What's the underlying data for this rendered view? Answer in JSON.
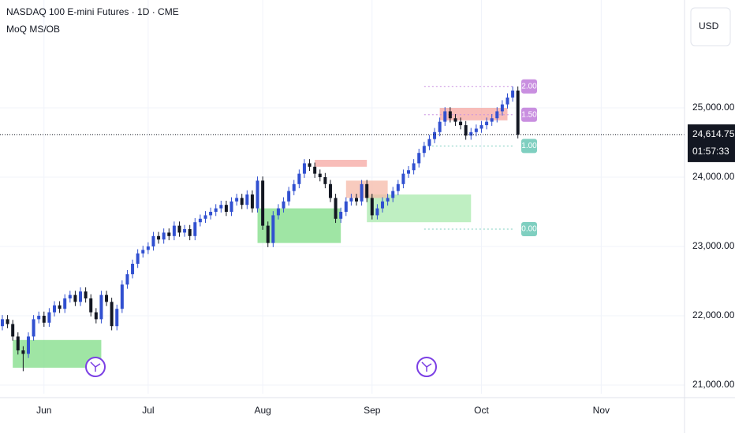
{
  "chart_data": {
    "type": "candlestick",
    "title": "NASDAQ 100 E-mini Futures · 1D · CME",
    "indicator": "MoQ MS/OB",
    "currency": "USD",
    "up_color": "#3150d0",
    "down_color": "#131722",
    "grid": true,
    "open": [
      21850,
      21950,
      21880,
      21700,
      21500,
      21450,
      21700,
      21950,
      22000,
      21900,
      22050,
      22150,
      22100,
      22250,
      22300,
      22200,
      22350,
      22250,
      22050,
      21950,
      22300,
      22200,
      21850,
      22100,
      22450,
      22600,
      22750,
      22900,
      22950,
      23000,
      23150,
      23100,
      23200,
      23150,
      23300,
      23200,
      23250,
      23150,
      23350,
      23400,
      23450,
      23500,
      23550,
      23600,
      23500,
      23650,
      23700,
      23600,
      23750,
      23550,
      23950,
      23300,
      23050,
      23450,
      23550,
      23650,
      23800,
      23900,
      24050,
      24200,
      24150,
      24050,
      24000,
      23900,
      23700,
      23400,
      23500,
      23650,
      23700,
      23650,
      23900,
      23700,
      23450,
      23550,
      23650,
      23700,
      23800,
      23900,
      24050,
      24100,
      24200,
      24350,
      24450,
      24550,
      24650,
      24800,
      24950,
      24850,
      24800,
      24750,
      24600,
      24650,
      24700,
      24750,
      24800,
      24850,
      24950,
      25050,
      25150,
      25250
    ],
    "high": [
      22010,
      22010,
      21940,
      21760,
      21560,
      21760,
      22010,
      22060,
      22060,
      22110,
      22210,
      22210,
      22310,
      22360,
      22360,
      22410,
      22410,
      22310,
      22110,
      22360,
      22360,
      22260,
      22160,
      22510,
      22660,
      22810,
      22960,
      23010,
      23060,
      23210,
      23210,
      23260,
      23260,
      23360,
      23360,
      23310,
      23310,
      23410,
      23460,
      23510,
      23560,
      23610,
      23660,
      23660,
      23710,
      23760,
      23760,
      23810,
      23810,
      24010,
      24010,
      23360,
      23510,
      23610,
      23710,
      23860,
      23960,
      24110,
      24260,
      24260,
      24210,
      24110,
      24060,
      23960,
      23760,
      23560,
      23710,
      23760,
      23760,
      23960,
      23960,
      23760,
      23610,
      23710,
      23760,
      23860,
      23960,
      24110,
      24160,
      24260,
      24410,
      24510,
      24610,
      24710,
      24860,
      25010,
      25010,
      24910,
      24860,
      24810,
      24710,
      24760,
      24810,
      24860,
      24910,
      25010,
      25110,
      25210,
      25310,
      25310
    ],
    "low": [
      21790,
      21820,
      21640,
      21440,
      21200,
      21390,
      21640,
      21890,
      21840,
      21840,
      21990,
      22040,
      22040,
      22190,
      22140,
      22140,
      22190,
      21990,
      21890,
      21890,
      22140,
      21790,
      21790,
      22040,
      22390,
      22540,
      22690,
      22840,
      22890,
      22940,
      23040,
      23040,
      23090,
      23090,
      23140,
      23140,
      23090,
      23090,
      23290,
      23340,
      23390,
      23440,
      23490,
      23440,
      23440,
      23590,
      23540,
      23540,
      23490,
      23490,
      23240,
      22990,
      22990,
      23390,
      23490,
      23590,
      23740,
      23840,
      23990,
      24090,
      23990,
      23940,
      23840,
      23640,
      23340,
      23340,
      23440,
      23590,
      23590,
      23590,
      23640,
      23390,
      23390,
      23490,
      23590,
      23640,
      23740,
      23840,
      23990,
      24040,
      24140,
      24290,
      24390,
      24490,
      24590,
      24740,
      24790,
      24740,
      24690,
      24540,
      24540,
      24590,
      24640,
      24690,
      24740,
      24790,
      24890,
      24990,
      25090,
      24560
    ],
    "close": [
      21950,
      21880,
      21700,
      21500,
      21450,
      21700,
      21950,
      22000,
      21900,
      22050,
      22150,
      22100,
      22250,
      22300,
      22200,
      22350,
      22250,
      22050,
      21950,
      22300,
      22200,
      21850,
      22100,
      22450,
      22600,
      22750,
      22900,
      22950,
      23000,
      23150,
      23100,
      23200,
      23150,
      23300,
      23200,
      23250,
      23150,
      23350,
      23400,
      23450,
      23500,
      23550,
      23600,
      23500,
      23650,
      23700,
      23600,
      23750,
      23550,
      23950,
      23300,
      23050,
      23450,
      23550,
      23650,
      23800,
      23900,
      24050,
      24200,
      24150,
      24050,
      24000,
      23900,
      23700,
      23400,
      23500,
      23650,
      23700,
      23650,
      23900,
      23700,
      23450,
      23550,
      23650,
      23700,
      23800,
      23900,
      24050,
      24100,
      24200,
      24350,
      24450,
      24550,
      24650,
      24800,
      24950,
      24850,
      24800,
      24750,
      24600,
      24650,
      24700,
      24750,
      24800,
      24850,
      24950,
      25050,
      25150,
      25250,
      24614.75
    ],
    "xlim": [
      -0.45,
      131
    ],
    "xticks": [
      {
        "value": 8,
        "label": "Jun"
      },
      {
        "value": 28,
        "label": "Jul"
      },
      {
        "value": 50,
        "label": "Aug"
      },
      {
        "value": 71,
        "label": "Sep"
      },
      {
        "value": 92,
        "label": "Oct"
      },
      {
        "value": 115,
        "label": "Nov"
      }
    ],
    "ylim": [
      20875,
      26557
    ],
    "yticks": [
      {
        "value": 21000,
        "label": "21,000.00"
      },
      {
        "value": 22000,
        "label": "22,000.00"
      },
      {
        "value": 23000,
        "label": "23,000.00"
      },
      {
        "value": 24000,
        "label": "24,000.00"
      },
      {
        "value": 25000,
        "label": "25,000.00"
      }
    ],
    "current_price": {
      "value": 24614.75,
      "label": "24,614.75"
    },
    "countdown": "01:57:33",
    "zones": [
      {
        "from": 2,
        "to": 19,
        "top": 21650,
        "bottom": 21250,
        "color": "#7fdc86"
      },
      {
        "from": 49,
        "to": 65,
        "top": 23550,
        "bottom": 23050,
        "color": "#7fdc86"
      },
      {
        "from": 70,
        "to": 90,
        "top": 23750,
        "bottom": 23350,
        "color": "#a9e9ae"
      },
      {
        "from": 84,
        "to": 97,
        "top": 25000,
        "bottom": 24820,
        "color": "#f6a7a2"
      },
      {
        "from": 60,
        "to": 70,
        "top": 24250,
        "bottom": 24150,
        "color": "#f6a7a2"
      },
      {
        "from": 66,
        "to": 74,
        "top": 23950,
        "bottom": 23700,
        "color": "#f6b9a8"
      }
    ],
    "fib_levels": [
      {
        "value": 25310,
        "label": "2.00",
        "color": "#c98fe0"
      },
      {
        "value": 24900,
        "label": "1.50",
        "color": "#c98fe0"
      },
      {
        "value": 24450,
        "label": "1.00",
        "color": "#7fcfc0"
      },
      {
        "value": 23250,
        "label": "0.00",
        "color": "#7fcfc0"
      }
    ]
  }
}
